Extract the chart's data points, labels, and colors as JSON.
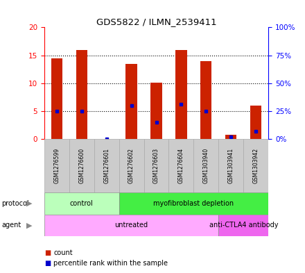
{
  "title": "GDS5822 / ILMN_2539411",
  "samples": [
    "GSM1276599",
    "GSM1276600",
    "GSM1276601",
    "GSM1276602",
    "GSM1276603",
    "GSM1276604",
    "GSM1303940",
    "GSM1303941",
    "GSM1303942"
  ],
  "counts": [
    14.5,
    16.0,
    0.05,
    13.5,
    10.1,
    16.0,
    14.0,
    0.8,
    6.0
  ],
  "percentile_ranks": [
    25,
    25,
    0,
    30,
    15,
    31,
    25,
    2,
    7
  ],
  "ylim_left": [
    0,
    20
  ],
  "ylim_right": [
    0,
    100
  ],
  "yticks_left": [
    0,
    5,
    10,
    15,
    20
  ],
  "yticks_right": [
    0,
    25,
    50,
    75,
    100
  ],
  "bar_color": "#cc2200",
  "percentile_color": "#0000cc",
  "protocol_groups": [
    {
      "label": "control",
      "start": 0,
      "end": 3,
      "color": "#bbffbb"
    },
    {
      "label": "myofibroblast depletion",
      "start": 3,
      "end": 9,
      "color": "#44ee44"
    }
  ],
  "agent_groups": [
    {
      "label": "untreated",
      "start": 0,
      "end": 7,
      "color": "#ffaaff"
    },
    {
      "label": "anti-CTLA4 antibody",
      "start": 7,
      "end": 9,
      "color": "#ee66ee"
    }
  ],
  "legend_count_label": "count",
  "legend_percentile_label": "percentile rank within the sample",
  "bar_width": 0.45
}
